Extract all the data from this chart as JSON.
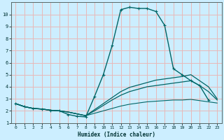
{
  "xlabel": "Humidex (Indice chaleur)",
  "bg_color": "#cceeff",
  "grid_color": "#e8b8b8",
  "line_color": "#006666",
  "xlim": [
    -0.5,
    23.5
  ],
  "ylim": [
    1,
    11
  ],
  "xticks": [
    0,
    1,
    2,
    3,
    4,
    5,
    6,
    7,
    8,
    9,
    10,
    11,
    12,
    13,
    14,
    15,
    16,
    17,
    18,
    19,
    20,
    21,
    22,
    23
  ],
  "yticks": [
    1,
    2,
    3,
    4,
    5,
    6,
    7,
    8,
    9,
    10
  ],
  "line1_x": [
    0,
    1,
    2,
    3,
    4,
    5,
    6,
    7,
    8,
    9,
    10,
    11,
    12,
    13,
    14,
    15,
    16,
    17,
    18,
    19,
    20,
    21,
    22
  ],
  "line1_y": [
    2.6,
    2.35,
    2.2,
    2.15,
    2.05,
    2.0,
    1.7,
    1.55,
    1.5,
    3.2,
    5.0,
    7.4,
    10.4,
    10.6,
    10.5,
    10.5,
    10.25,
    9.1,
    5.5,
    5.0,
    4.5,
    4.1,
    2.9
  ],
  "line2_x": [
    0,
    1,
    2,
    3,
    4,
    5,
    6,
    7,
    8,
    9,
    10,
    11,
    12,
    13,
    14,
    15,
    16,
    17,
    18,
    19,
    20,
    21,
    22,
    23
  ],
  "line2_y": [
    2.6,
    2.35,
    2.2,
    2.15,
    2.05,
    2.0,
    1.9,
    1.75,
    1.6,
    2.1,
    2.6,
    3.1,
    3.6,
    3.95,
    4.15,
    4.35,
    4.55,
    4.65,
    4.75,
    4.85,
    5.0,
    4.5,
    4.0,
    3.0
  ],
  "line3_x": [
    0,
    1,
    2,
    3,
    4,
    5,
    6,
    7,
    8,
    9,
    10,
    11,
    12,
    13,
    14,
    15,
    16,
    17,
    18,
    19,
    20,
    21,
    22,
    23
  ],
  "line3_y": [
    2.6,
    2.35,
    2.2,
    2.15,
    2.05,
    2.0,
    1.9,
    1.75,
    1.6,
    2.0,
    2.45,
    2.9,
    3.3,
    3.6,
    3.8,
    4.0,
    4.1,
    4.2,
    4.3,
    4.4,
    4.5,
    4.1,
    3.6,
    2.9
  ],
  "line4_x": [
    0,
    1,
    2,
    3,
    4,
    5,
    6,
    7,
    8,
    9,
    10,
    11,
    12,
    13,
    14,
    15,
    16,
    17,
    18,
    19,
    20,
    21,
    22,
    23
  ],
  "line4_y": [
    2.6,
    2.35,
    2.2,
    2.15,
    2.05,
    2.0,
    1.9,
    1.75,
    1.6,
    1.8,
    2.0,
    2.2,
    2.4,
    2.55,
    2.65,
    2.75,
    2.8,
    2.85,
    2.9,
    2.9,
    2.95,
    2.85,
    2.75,
    2.65
  ]
}
